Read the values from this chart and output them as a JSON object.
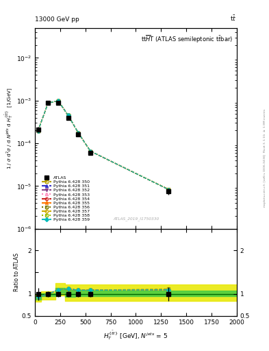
{
  "top_left_label": "13000 GeV pp",
  "top_right_label": "t$\\bar{t}$",
  "watermark": "ATLAS_2019_I1750330",
  "xlabel": "$H_T^{\\{\\bar{t}t\\}}$ [GeV], $N^{jets}$ = 5",
  "ylabel_main": "1 / $\\sigma$ d$^2\\sigma$ / d $N^{jets}$ d $H_T^{\\{\\bar{t}t\\}}$  [1/GeV]",
  "ylabel_ratio": "Ratio to ATLAS",
  "title_text": "tt$\\overline{H}$T (ATLAS semileptonic t$\\bar{t}$bar)",
  "xvalues": [
    30,
    130,
    230,
    330,
    430,
    550,
    1325
  ],
  "xedges": [
    0,
    60,
    200,
    300,
    400,
    500,
    600,
    2000
  ],
  "atlas_y": [
    0.00021,
    0.00088,
    0.0009,
    0.0004,
    0.00016,
    6e-05,
    7.5e-06
  ],
  "atlas_yerr": [
    3e-05,
    5e-05,
    5e-05,
    2.5e-05,
    1e-05,
    4e-06,
    1.2e-06
  ],
  "band_yellow_lo": [
    0.82,
    0.87,
    0.97,
    0.85,
    0.85,
    0.85,
    0.85
  ],
  "band_yellow_hi": [
    0.98,
    1.07,
    1.25,
    1.22,
    1.22,
    1.22,
    1.22
  ],
  "band_green_lo": [
    0.88,
    0.95,
    1.03,
    0.93,
    0.95,
    0.96,
    0.96
  ],
  "band_green_hi": [
    0.95,
    1.02,
    1.14,
    1.1,
    1.1,
    1.08,
    1.08
  ],
  "pythia_ratios": [
    [
      0.93,
      1.0,
      1.1,
      1.11,
      1.09,
      1.09,
      1.12
    ],
    [
      0.93,
      1.0,
      1.1,
      1.12,
      1.09,
      1.09,
      1.1
    ],
    [
      0.93,
      1.0,
      1.1,
      1.12,
      1.09,
      1.09,
      1.1
    ],
    [
      0.93,
      1.0,
      1.1,
      1.12,
      1.09,
      1.09,
      1.1
    ],
    [
      0.93,
      1.0,
      1.1,
      1.12,
      1.09,
      1.09,
      1.1
    ],
    [
      0.93,
      1.0,
      1.1,
      1.12,
      1.09,
      1.09,
      1.1
    ],
    [
      0.93,
      1.0,
      1.1,
      1.12,
      1.09,
      1.09,
      1.1
    ],
    [
      0.93,
      1.0,
      1.1,
      1.12,
      1.09,
      1.09,
      1.1
    ],
    [
      0.93,
      1.0,
      1.1,
      1.12,
      1.09,
      1.09,
      1.1
    ],
    [
      0.93,
      1.0,
      1.1,
      1.12,
      1.09,
      1.09,
      1.1
    ]
  ],
  "line_configs": [
    {
      "label": "Pythia 6.428 350",
      "color": "#b8a000",
      "ls": "--",
      "marker": "s",
      "mfc": "none"
    },
    {
      "label": "Pythia 6.428 351",
      "color": "#3333cc",
      "ls": "--",
      "marker": "^",
      "mfc": "#3333cc"
    },
    {
      "label": "Pythia 6.428 352",
      "color": "#884488",
      "ls": "--",
      "marker": "v",
      "mfc": "#884488"
    },
    {
      "label": "Pythia 6.428 353",
      "color": "#ff88bb",
      "ls": ":",
      "marker": "^",
      "mfc": "none"
    },
    {
      "label": "Pythia 6.428 354",
      "color": "#cc2222",
      "ls": "--",
      "marker": "o",
      "mfc": "none"
    },
    {
      "label": "Pythia 6.428 355",
      "color": "#ff7700",
      "ls": "--",
      "marker": "*",
      "mfc": "#ff7700"
    },
    {
      "label": "Pythia 6.428 356",
      "color": "#777700",
      "ls": ":",
      "marker": "s",
      "mfc": "none"
    },
    {
      "label": "Pythia 6.428 357",
      "color": "#ccaa00",
      "ls": "--",
      "marker": "D",
      "mfc": "none"
    },
    {
      "label": "Pythia 6.428 358",
      "color": "#99bb00",
      "ls": ":",
      "marker": "s",
      "mfc": "none"
    },
    {
      "label": "Pythia 6.428 359",
      "color": "#00bbbb",
      "ls": "--",
      "marker": "D",
      "mfc": "#00bbbb"
    }
  ],
  "ylim_main": [
    1e-06,
    0.05
  ],
  "ylim_ratio": [
    0.5,
    2.5
  ],
  "xlim": [
    0,
    2000
  ]
}
